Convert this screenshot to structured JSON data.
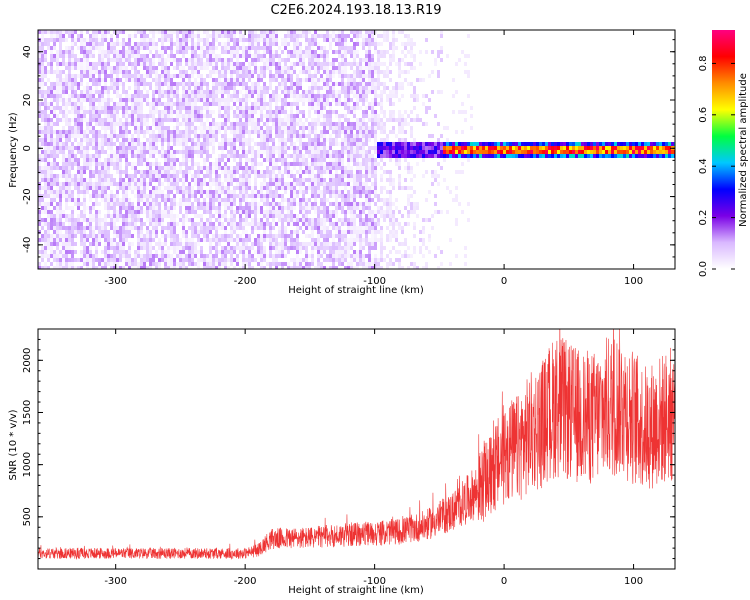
{
  "title": "C2E6.2024.193.18.13.R19",
  "chart_data": [
    {
      "type": "heatmap",
      "title": "C2E6.2024.193.18.13.R19",
      "xlabel": "Height of straight line (km)",
      "ylabel": "Frequency (Hz)",
      "xlim": [
        -360,
        132
      ],
      "ylim": [
        -50,
        49
      ],
      "xticks": [
        -300,
        -200,
        -100,
        0,
        100
      ],
      "yticks": [
        -40,
        -20,
        0,
        20,
        40
      ],
      "colorbar": {
        "label": "Normalized spectral amplitude",
        "range": [
          0.0,
          0.93
        ],
        "ticks": [
          0.0,
          0.2,
          0.4,
          0.6,
          0.8
        ],
        "colors": [
          "#ffffff",
          "#d9b8ff",
          "#7a00e6",
          "#0000ff",
          "#00c8ff",
          "#00ff40",
          "#ffff00",
          "#ff8c00",
          "#ff0000",
          "#ff0080"
        ]
      },
      "regions": [
        {
          "x": [
            -360,
            -100
          ],
          "y": [
            -50,
            49
          ],
          "amplitude": 0.05,
          "pattern": "noise"
        },
        {
          "x": [
            -100,
            -45
          ],
          "y": [
            -50,
            49
          ],
          "amplitude": 0.02,
          "pattern": "fading noise"
        },
        {
          "x": [
            -100,
            -50
          ],
          "y": [
            -3,
            3
          ],
          "amplitude": 0.25
        },
        {
          "x": [
            -50,
            132
          ],
          "y": [
            -2,
            2
          ],
          "amplitude": 0.75
        }
      ]
    },
    {
      "type": "line",
      "xlabel": "Height of straight line (km)",
      "ylabel": "SNR (10 * v/v)",
      "xlim": [
        -360,
        132
      ],
      "ylim": [
        0,
        2300
      ],
      "xticks": [
        -300,
        -200,
        -100,
        0,
        100
      ],
      "yticks": [
        500,
        1000,
        1500,
        2000
      ],
      "color": "#ee3333",
      "series": [
        {
          "x": [
            -360,
            -300,
            -250,
            -200,
            -190,
            -180,
            -150,
            -120,
            -100,
            -80,
            -60,
            -40,
            -30,
            -20,
            -10,
            0,
            10,
            20,
            30,
            40,
            50,
            60,
            70,
            80,
            90,
            100,
            110,
            120,
            132
          ],
          "y": [
            150,
            150,
            150,
            150,
            180,
            290,
            300,
            330,
            340,
            360,
            420,
            550,
            650,
            760,
            900,
            1100,
            1150,
            1300,
            1400,
            1580,
            1500,
            1450,
            1450,
            1550,
            1600,
            1450,
            1350,
            1420,
            1500
          ]
        }
      ]
    }
  ]
}
